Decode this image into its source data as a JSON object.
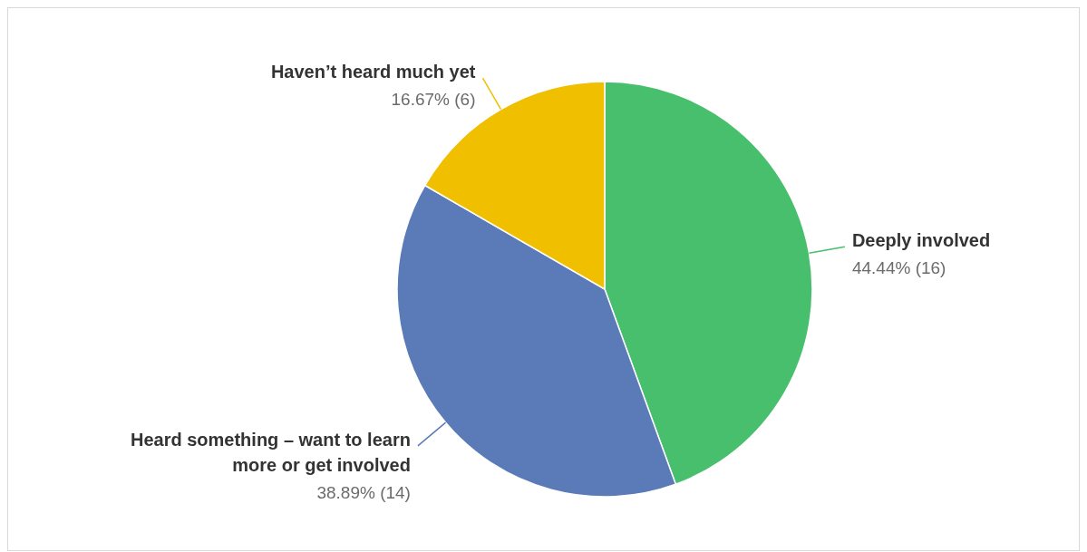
{
  "chart_data": {
    "type": "pie",
    "categories": [
      "Deeply involved",
      "Heard something – want to learn more or get involved",
      "Haven’t heard much yet"
    ],
    "values": [
      16,
      14,
      6
    ],
    "colors": [
      "#48bf6c",
      "#5b7bb8",
      "#f0bf00"
    ],
    "value_labels": [
      "44.44% (16)",
      "38.89% (14)",
      "16.67% (6)"
    ]
  }
}
